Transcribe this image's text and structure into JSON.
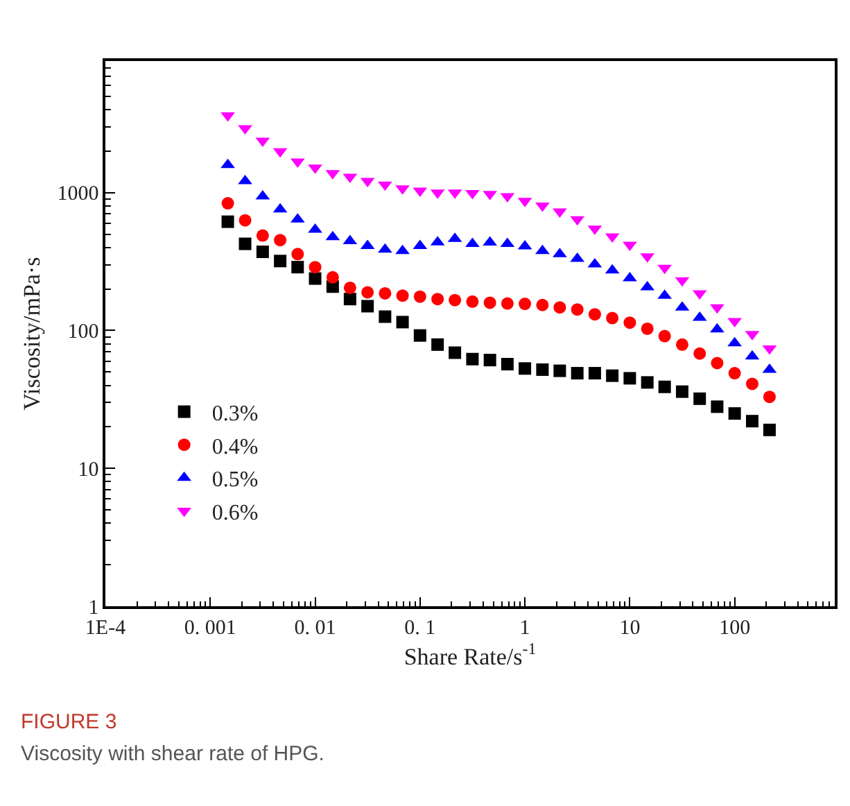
{
  "chart_data": {
    "type": "scatter",
    "title": "FIGURE 3",
    "subtitle": "Viscosity with shear rate of HPG.",
    "xlabel": "Share Rate/s$^{-1}$",
    "ylabel": "Viscosity/mPa·s",
    "log": "xy",
    "legend": "bottom left",
    "x": [
      0.00147,
      0.00215,
      0.00316,
      0.00464,
      0.00681,
      0.01,
      0.0147,
      0.0215,
      0.0316,
      0.0464,
      0.0681,
      0.1,
      0.147,
      0.215,
      0.316,
      0.464,
      0.681,
      1,
      1.47,
      2.15,
      3.16,
      4.64,
      6.81,
      10,
      14.7,
      21.5,
      31.6,
      46.4,
      68.1,
      100,
      147,
      215
    ],
    "xlim": [
      0.0001,
      900
    ],
    "ylim": [
      1,
      9000
    ],
    "xticks": [
      {
        "value": 0.0001,
        "label": "1E-4"
      },
      {
        "value": 0.0002,
        "label": null
      },
      {
        "value": 0.0003,
        "label": null
      },
      {
        "value": 0.0004,
        "label": null
      },
      {
        "value": 0.0005,
        "label": null
      },
      {
        "value": 0.0006,
        "label": null
      },
      {
        "value": 0.0007,
        "label": null
      },
      {
        "value": 0.0008,
        "label": null
      },
      {
        "value": 0.0009,
        "label": null
      },
      {
        "value": 0.001,
        "label": "0. 001"
      },
      {
        "value": 0.002,
        "label": null
      },
      {
        "value": 0.003,
        "label": null
      },
      {
        "value": 0.004,
        "label": null
      },
      {
        "value": 0.005,
        "label": null
      },
      {
        "value": 0.006,
        "label": null
      },
      {
        "value": 0.007,
        "label": null
      },
      {
        "value": 0.008,
        "label": null
      },
      {
        "value": 0.009,
        "label": null
      },
      {
        "value": 0.01,
        "label": "0. 01"
      },
      {
        "value": 0.02,
        "label": null
      },
      {
        "value": 0.03,
        "label": null
      },
      {
        "value": 0.04,
        "label": null
      },
      {
        "value": 0.05,
        "label": null
      },
      {
        "value": 0.06,
        "label": null
      },
      {
        "value": 0.07,
        "label": null
      },
      {
        "value": 0.08,
        "label": null
      },
      {
        "value": 0.09,
        "label": null
      },
      {
        "value": 0.1,
        "label": "0. 1"
      },
      {
        "value": 0.2,
        "label": null
      },
      {
        "value": 0.3,
        "label": null
      },
      {
        "value": 0.4,
        "label": null
      },
      {
        "value": 0.5,
        "label": null
      },
      {
        "value": 0.6,
        "label": null
      },
      {
        "value": 0.7,
        "label": null
      },
      {
        "value": 0.8,
        "label": null
      },
      {
        "value": 0.9,
        "label": null
      },
      1,
      {
        "value": 2,
        "label": null
      },
      {
        "value": 3,
        "label": null
      },
      {
        "value": 4,
        "label": null
      },
      {
        "value": 5,
        "label": null
      },
      {
        "value": 6,
        "label": null
      },
      {
        "value": 7,
        "label": null
      },
      {
        "value": 8,
        "label": null
      },
      {
        "value": 9,
        "label": null
      },
      10,
      {
        "value": 20,
        "label": null
      },
      {
        "value": 30,
        "label": null
      },
      {
        "value": 40,
        "label": null
      },
      {
        "value": 50,
        "label": null
      },
      {
        "value": 60,
        "label": null
      },
      {
        "value": 70,
        "label": null
      },
      {
        "value": 80,
        "label": null
      },
      {
        "value": 90,
        "label": null
      },
      100,
      {
        "value": 200,
        "label": null
      },
      {
        "value": 300,
        "label": null
      },
      {
        "value": 400,
        "label": null
      },
      {
        "value": 500,
        "label": null
      },
      {
        "value": 600,
        "label": null
      },
      {
        "value": 700,
        "label": null
      },
      {
        "value": 800,
        "label": null
      }
    ],
    "yticks": [
      1,
      {
        "value": 2,
        "label": null
      },
      {
        "value": 3,
        "label": null
      },
      {
        "value": 4,
        "label": null
      },
      {
        "value": 5,
        "label": null
      },
      {
        "value": 6,
        "label": null
      },
      {
        "value": 7,
        "label": null
      },
      {
        "value": 8,
        "label": null
      },
      {
        "value": 9,
        "label": null
      },
      10,
      {
        "value": 20,
        "label": null
      },
      {
        "value": 30,
        "label": null
      },
      {
        "value": 40,
        "label": null
      },
      {
        "value": 50,
        "label": null
      },
      {
        "value": 60,
        "label": null
      },
      {
        "value": 70,
        "label": null
      },
      {
        "value": 80,
        "label": null
      },
      {
        "value": 90,
        "label": null
      },
      100,
      {
        "value": 200,
        "label": null
      },
      {
        "value": 300,
        "label": null
      },
      {
        "value": 400,
        "label": null
      },
      {
        "value": 500,
        "label": null
      },
      {
        "value": 600,
        "label": null
      },
      {
        "value": 700,
        "label": null
      },
      {
        "value": 800,
        "label": null
      },
      {
        "value": 900,
        "label": null
      },
      1000,
      {
        "value": 2000,
        "label": null
      },
      {
        "value": 3000,
        "label": null
      },
      {
        "value": 4000,
        "label": null
      },
      {
        "value": 5000,
        "label": null
      },
      {
        "value": 6000,
        "label": null
      },
      {
        "value": 7000,
        "label": null
      },
      {
        "value": 8000,
        "label": null
      }
    ],
    "series": [
      {
        "name": "0.3%",
        "color": "#000000",
        "marker": "square",
        "values": [
          615,
          425,
          372,
          319,
          288,
          238,
          208,
          169,
          150,
          126,
          115,
          92,
          79,
          69,
          62,
          61,
          57,
          53,
          52,
          51,
          49,
          49,
          47,
          45,
          42,
          39,
          36,
          32,
          28,
          25,
          22,
          19
        ]
      },
      {
        "name": "0.4%",
        "color": "#ff0000",
        "marker": "circle",
        "values": [
          837,
          629,
          488,
          452,
          358,
          288,
          243,
          204,
          189,
          186,
          179,
          176,
          169,
          166,
          162,
          159,
          157,
          156,
          153,
          147,
          142,
          131,
          123,
          114,
          103,
          91,
          79,
          68,
          58,
          49,
          41,
          33
        ]
      },
      {
        "name": "0.5%",
        "color": "#0000ff",
        "marker": "triangle",
        "values": [
          1590,
          1213,
          940,
          757,
          639,
          539,
          476,
          445,
          411,
          387,
          378,
          411,
          437,
          462,
          425,
          435,
          425,
          408,
          378,
          358,
          331,
          302,
          273,
          240,
          206,
          179,
          147,
          124,
          102,
          81,
          65,
          52
        ]
      },
      {
        "name": "0.6%",
        "color": "#ff00ff",
        "marker": "triangle-down",
        "values": [
          3630,
          2925,
          2375,
          1988,
          1678,
          1517,
          1383,
          1300,
          1213,
          1140,
          1072,
          1031,
          1000,
          1000,
          992,
          977,
          940,
          870,
          805,
          729,
          639,
          547,
          480,
          418,
          344,
          284,
          231,
          186,
          147,
          117,
          94,
          74
        ]
      }
    ]
  }
}
